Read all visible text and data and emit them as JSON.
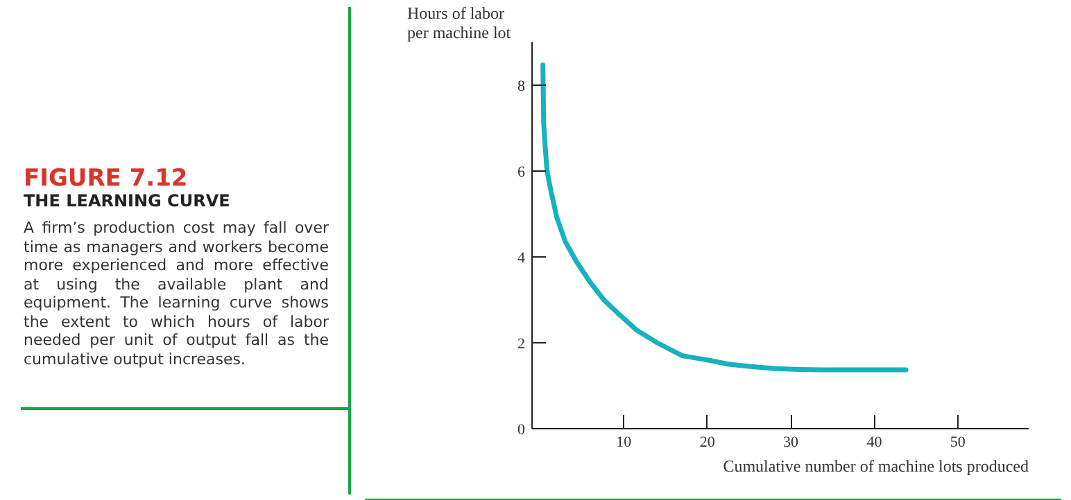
{
  "chart_data": {
    "type": "line",
    "title": "FIGURE 7.12",
    "subtitle": "THE LEARNING CURVE",
    "annotations": [
      "A firm’s production cost may fall over time as managers and workers become more experienced and more effective at using the available plant and equipment. The learning curve shows the extent to which hours of labor needed per unit of output fall as the cumulative output increases."
    ],
    "xlabel": "Cumulative number of machine lots produced",
    "ylabel": "Hours of labor per machine lot",
    "x": [
      0.3,
      0.4,
      0.6,
      0.8,
      1.3,
      2.0,
      3.0,
      4.3,
      6.0,
      7.6,
      9.5,
      11.5,
      14.0,
      17.0,
      20.0,
      22.6,
      25.0,
      28.1,
      31.0,
      33.7,
      38.0,
      43.8
    ],
    "series": [
      {
        "color": "#17b1c0",
        "values": [
          8.47,
          7.1,
          6.5,
          6.0,
          5.5,
          4.9,
          4.35,
          3.9,
          3.4,
          3.0,
          2.65,
          2.3,
          2.0,
          1.7,
          1.6,
          1.5,
          1.45,
          1.4,
          1.38,
          1.37,
          1.37,
          1.37
        ]
      }
    ],
    "xlim": [
      -1,
      58.5
    ],
    "ylim": [
      0,
      9
    ],
    "xticks": [
      10,
      20,
      30,
      40,
      50
    ],
    "yticks": [
      0,
      2,
      4,
      6,
      8
    ],
    "grid": false,
    "marker": "none",
    "line_style": "solid"
  }
}
